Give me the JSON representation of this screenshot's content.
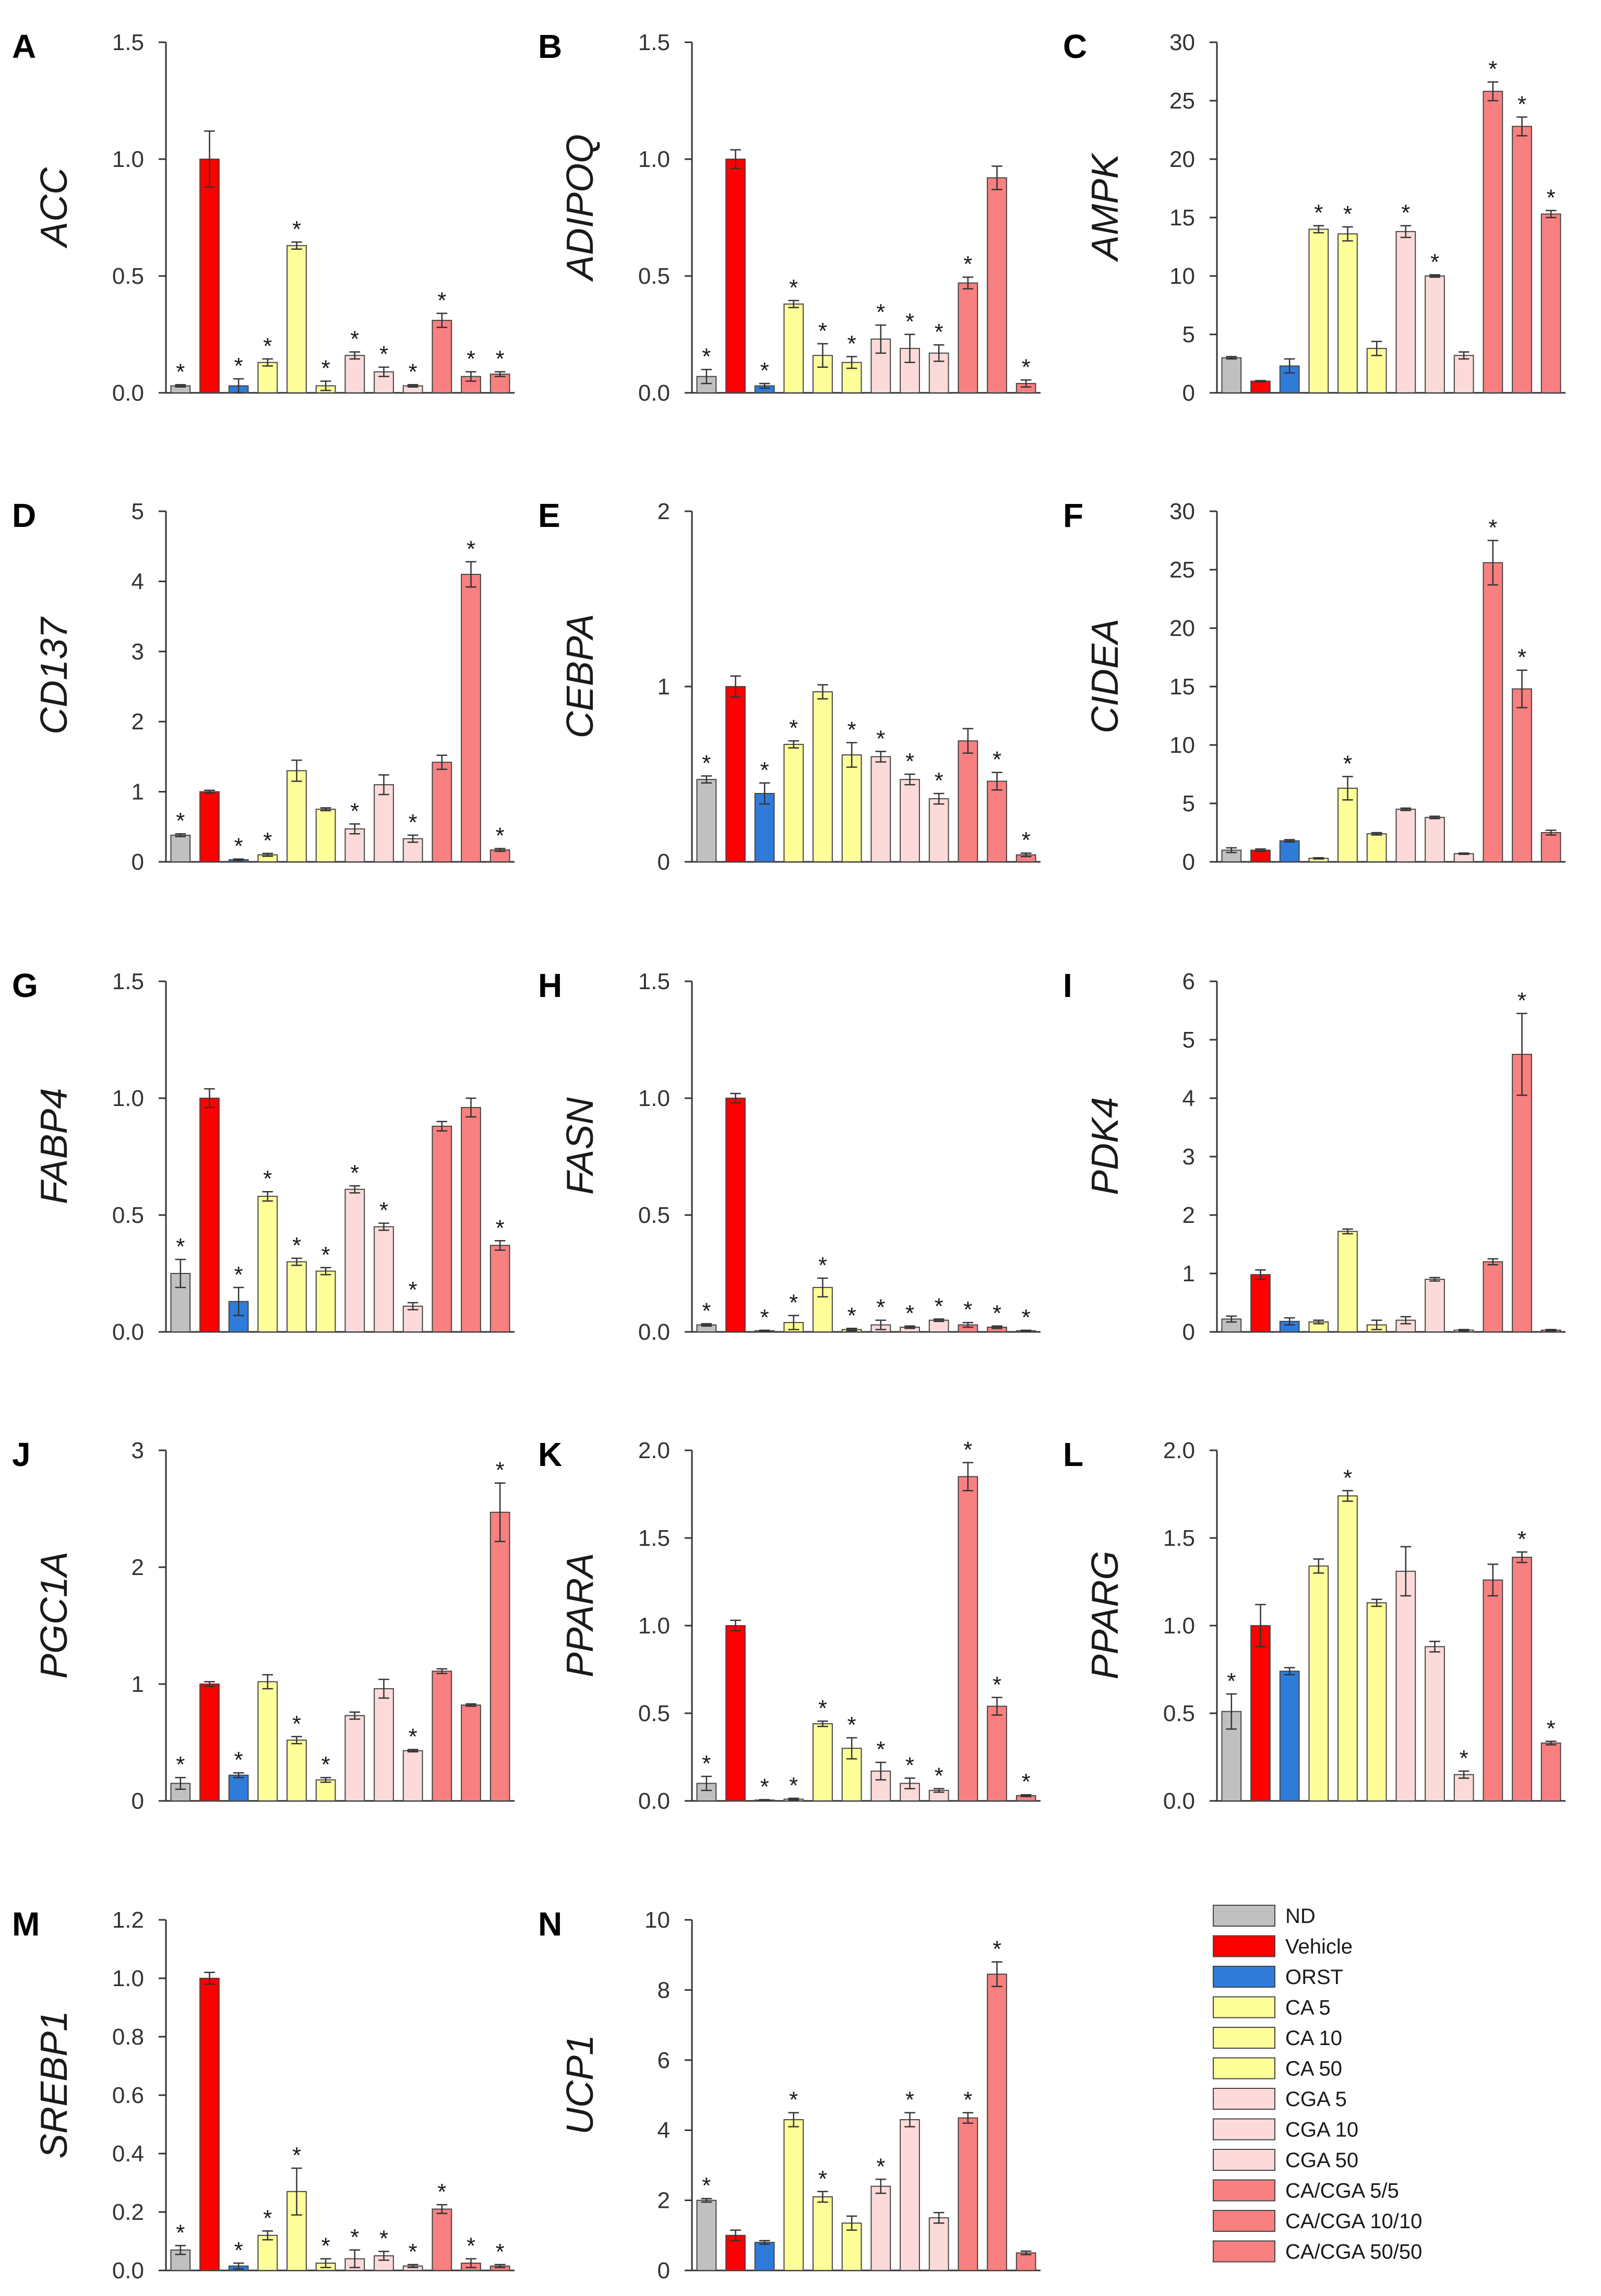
{
  "groups": [
    {
      "name": "ND",
      "color": "#c0c0c0"
    },
    {
      "name": "Vehicle",
      "color": "#ff0000"
    },
    {
      "name": "ORST",
      "color": "#2f7bd9"
    },
    {
      "name": "CA 5",
      "color": "#ffff99"
    },
    {
      "name": "CA 10",
      "color": "#ffff99"
    },
    {
      "name": "CA 50",
      "color": "#ffff99"
    },
    {
      "name": "CGA 5",
      "color": "#fddada"
    },
    {
      "name": "CGA 10",
      "color": "#fddada"
    },
    {
      "name": "CGA 50",
      "color": "#fddada"
    },
    {
      "name": "CA/CGA 5/5",
      "color": "#f88080"
    },
    {
      "name": "CA/CGA 10/10",
      "color": "#f88080"
    },
    {
      "name": "CA/CGA 50/50",
      "color": "#f88080"
    }
  ],
  "chart_data": [
    {
      "type": "bar",
      "letter": "A",
      "ylabel": "ACC",
      "ylim": [
        0,
        1.5
      ],
      "ticks": [
        "0.0",
        "0.5",
        "1.0",
        "1.5"
      ],
      "values": [
        0.03,
        1.0,
        0.03,
        0.13,
        0.63,
        0.03,
        0.16,
        0.09,
        0.03,
        0.31,
        0.07,
        0.08
      ],
      "errors": [
        0.005,
        0.12,
        0.03,
        0.015,
        0.015,
        0.02,
        0.015,
        0.02,
        0.005,
        0.03,
        0.02,
        0.01
      ],
      "significant": [
        true,
        false,
        true,
        true,
        true,
        true,
        true,
        true,
        true,
        true,
        true,
        true
      ]
    },
    {
      "type": "bar",
      "letter": "B",
      "ylabel": "ADIPOQ",
      "ylim": [
        0,
        1.5
      ],
      "ticks": [
        "0.0",
        "0.5",
        "1.0",
        "1.5"
      ],
      "values": [
        0.07,
        1.0,
        0.03,
        0.38,
        0.16,
        0.13,
        0.23,
        0.19,
        0.17,
        0.47,
        0.92,
        0.04
      ],
      "errors": [
        0.03,
        0.04,
        0.01,
        0.015,
        0.05,
        0.025,
        0.06,
        0.06,
        0.035,
        0.025,
        0.05,
        0.015
      ],
      "significant": [
        true,
        false,
        true,
        true,
        true,
        true,
        true,
        true,
        true,
        true,
        false,
        true
      ]
    },
    {
      "type": "bar",
      "letter": "C",
      "ylabel": "AMPK",
      "ylim": [
        0,
        30
      ],
      "ticks": [
        "0",
        "5",
        "10",
        "15",
        "20",
        "25",
        "30"
      ],
      "values": [
        3.0,
        1.0,
        2.3,
        14.0,
        13.6,
        3.8,
        13.8,
        10.0,
        3.2,
        25.8,
        22.8,
        15.3
      ],
      "errors": [
        0.1,
        0.05,
        0.6,
        0.3,
        0.6,
        0.6,
        0.5,
        0.1,
        0.3,
        0.8,
        0.8,
        0.3
      ],
      "significant": [
        false,
        false,
        false,
        true,
        true,
        false,
        true,
        true,
        false,
        true,
        true,
        true
      ]
    },
    {
      "type": "bar",
      "letter": "D",
      "ylabel": "CD137",
      "ylim": [
        0,
        5
      ],
      "ticks": [
        "0",
        "1",
        "2",
        "3",
        "4",
        "5"
      ],
      "values": [
        0.38,
        1.0,
        0.03,
        0.1,
        1.3,
        0.75,
        0.47,
        1.1,
        0.33,
        1.42,
        4.1,
        0.17
      ],
      "errors": [
        0.02,
        0.02,
        0.01,
        0.02,
        0.15,
        0.02,
        0.07,
        0.14,
        0.05,
        0.1,
        0.18,
        0.02
      ],
      "significant": [
        true,
        false,
        true,
        true,
        false,
        false,
        true,
        false,
        true,
        false,
        true,
        true
      ]
    },
    {
      "type": "bar",
      "letter": "E",
      "ylabel": "CEBPA",
      "ylim": [
        0,
        2
      ],
      "ticks": [
        "0",
        "1",
        "2"
      ],
      "values": [
        0.47,
        1.0,
        0.39,
        0.67,
        0.97,
        0.61,
        0.6,
        0.47,
        0.36,
        0.69,
        0.46,
        0.04
      ],
      "errors": [
        0.02,
        0.06,
        0.06,
        0.02,
        0.04,
        0.07,
        0.03,
        0.03,
        0.03,
        0.07,
        0.05,
        0.01
      ],
      "significant": [
        true,
        false,
        true,
        true,
        false,
        true,
        true,
        true,
        true,
        false,
        true,
        true
      ]
    },
    {
      "type": "bar",
      "letter": "F",
      "ylabel": "CIDEA",
      "ylim": [
        0,
        30
      ],
      "ticks": [
        "0",
        "5",
        "10",
        "15",
        "20",
        "25",
        "30"
      ],
      "values": [
        1.0,
        1.0,
        1.8,
        0.3,
        6.3,
        2.4,
        4.5,
        3.8,
        0.7,
        25.6,
        14.8,
        2.5
      ],
      "errors": [
        0.2,
        0.1,
        0.1,
        0.05,
        1.0,
        0.1,
        0.1,
        0.1,
        0.05,
        1.9,
        1.6,
        0.2
      ],
      "significant": [
        false,
        false,
        false,
        false,
        true,
        false,
        false,
        false,
        false,
        true,
        true,
        false
      ]
    },
    {
      "type": "bar",
      "letter": "G",
      "ylabel": "FABP4",
      "ylim": [
        0,
        1.5
      ],
      "ticks": [
        "0.0",
        "0.5",
        "1.0",
        "1.5"
      ],
      "values": [
        0.25,
        1.0,
        0.13,
        0.58,
        0.3,
        0.26,
        0.61,
        0.45,
        0.11,
        0.88,
        0.96,
        0.37
      ],
      "errors": [
        0.06,
        0.04,
        0.06,
        0.02,
        0.015,
        0.015,
        0.015,
        0.015,
        0.015,
        0.02,
        0.04,
        0.02
      ],
      "significant": [
        true,
        false,
        true,
        true,
        true,
        true,
        true,
        true,
        true,
        false,
        false,
        true
      ]
    },
    {
      "type": "bar",
      "letter": "H",
      "ylabel": "FASN",
      "ylim": [
        0,
        1.5
      ],
      "ticks": [
        "0.0",
        "0.5",
        "1.0",
        "1.5"
      ],
      "values": [
        0.03,
        1.0,
        0.005,
        0.04,
        0.19,
        0.01,
        0.03,
        0.02,
        0.05,
        0.03,
        0.02,
        0.005
      ],
      "errors": [
        0.005,
        0.02,
        0.002,
        0.03,
        0.04,
        0.005,
        0.02,
        0.005,
        0.005,
        0.01,
        0.005,
        0.002
      ],
      "significant": [
        true,
        false,
        true,
        true,
        true,
        true,
        true,
        true,
        true,
        true,
        true,
        true
      ]
    },
    {
      "type": "bar",
      "letter": "I",
      "ylabel": "PDK4",
      "ylim": [
        0,
        6
      ],
      "ticks": [
        "0",
        "1",
        "2",
        "3",
        "4",
        "5",
        "6"
      ],
      "values": [
        0.22,
        0.98,
        0.18,
        0.17,
        1.72,
        0.12,
        0.2,
        0.9,
        0.03,
        1.2,
        4.75,
        0.03
      ],
      "errors": [
        0.05,
        0.08,
        0.06,
        0.03,
        0.04,
        0.08,
        0.06,
        0.03,
        0.01,
        0.05,
        0.7,
        0.01
      ],
      "significant": [
        false,
        false,
        false,
        false,
        false,
        false,
        false,
        false,
        false,
        false,
        true,
        false
      ]
    },
    {
      "type": "bar",
      "letter": "J",
      "ylabel": "PGC1A",
      "ylim": [
        0,
        3
      ],
      "ticks": [
        "0",
        "1",
        "2",
        "3"
      ],
      "values": [
        0.15,
        1.0,
        0.22,
        1.02,
        0.52,
        0.18,
        0.73,
        0.96,
        0.43,
        1.11,
        0.82,
        2.47
      ],
      "errors": [
        0.05,
        0.02,
        0.02,
        0.06,
        0.03,
        0.02,
        0.03,
        0.08,
        0.01,
        0.02,
        0.01,
        0.25
      ],
      "significant": [
        true,
        false,
        true,
        false,
        true,
        true,
        false,
        false,
        true,
        false,
        false,
        true
      ]
    },
    {
      "type": "bar",
      "letter": "K",
      "ylabel": "PPARA",
      "ylim": [
        0,
        2.0
      ],
      "ticks": [
        "0.0",
        "0.5",
        "1.0",
        "1.5",
        "2.0"
      ],
      "values": [
        0.1,
        1.0,
        0.005,
        0.01,
        0.44,
        0.3,
        0.17,
        0.1,
        0.06,
        1.85,
        0.54,
        0.03
      ],
      "errors": [
        0.04,
        0.03,
        0.002,
        0.005,
        0.015,
        0.06,
        0.05,
        0.03,
        0.01,
        0.08,
        0.05,
        0.005
      ],
      "significant": [
        true,
        false,
        true,
        true,
        true,
        true,
        true,
        true,
        true,
        true,
        true,
        true
      ]
    },
    {
      "type": "bar",
      "letter": "L",
      "ylabel": "PPARG",
      "ylim": [
        0,
        2.0
      ],
      "ticks": [
        "0.0",
        "0.5",
        "1.0",
        "1.5",
        "2.0"
      ],
      "values": [
        0.51,
        1.0,
        0.74,
        1.34,
        1.74,
        1.13,
        1.31,
        0.88,
        0.15,
        1.26,
        1.39,
        0.33
      ],
      "errors": [
        0.1,
        0.12,
        0.02,
        0.04,
        0.03,
        0.02,
        0.14,
        0.03,
        0.02,
        0.09,
        0.03,
        0.01
      ],
      "significant": [
        true,
        false,
        false,
        false,
        true,
        false,
        false,
        false,
        true,
        false,
        true,
        true
      ]
    },
    {
      "type": "bar",
      "letter": "M",
      "ylabel": "SREBP1",
      "ylim": [
        0,
        1.2
      ],
      "ticks": [
        "0.0",
        "0.2",
        "0.4",
        "0.6",
        "0.8",
        "1.0",
        "1.2"
      ],
      "values": [
        0.07,
        1.0,
        0.015,
        0.12,
        0.27,
        0.025,
        0.04,
        0.05,
        0.015,
        0.21,
        0.025,
        0.015
      ],
      "errors": [
        0.015,
        0.02,
        0.01,
        0.015,
        0.08,
        0.015,
        0.03,
        0.015,
        0.005,
        0.015,
        0.015,
        0.005
      ],
      "significant": [
        true,
        false,
        true,
        true,
        true,
        true,
        true,
        true,
        true,
        true,
        true,
        true
      ]
    },
    {
      "type": "bar",
      "letter": "N",
      "ylabel": "UCP1",
      "ylim": [
        0,
        10
      ],
      "ticks": [
        "0",
        "2",
        "4",
        "6",
        "8",
        "10"
      ],
      "values": [
        2.0,
        1.0,
        0.8,
        4.3,
        2.1,
        1.35,
        2.4,
        4.3,
        1.5,
        4.35,
        8.45,
        0.5
      ],
      "errors": [
        0.05,
        0.15,
        0.05,
        0.2,
        0.15,
        0.2,
        0.2,
        0.2,
        0.15,
        0.15,
        0.35,
        0.05
      ],
      "significant": [
        true,
        false,
        false,
        true,
        true,
        false,
        true,
        true,
        false,
        true,
        true,
        false
      ]
    }
  ]
}
